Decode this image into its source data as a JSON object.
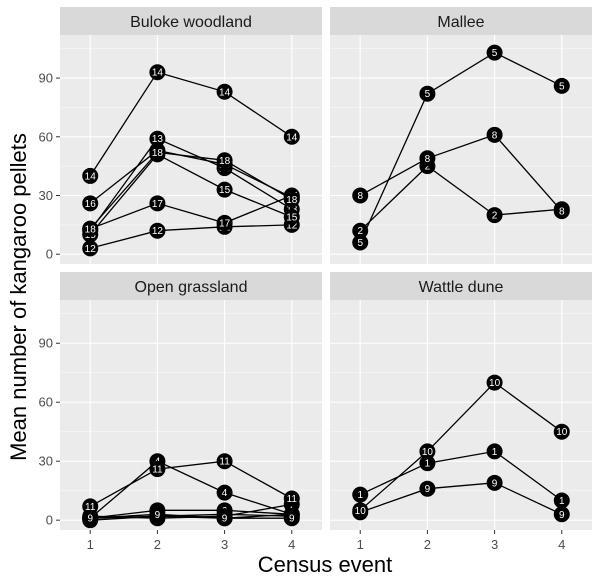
{
  "chart_data": {
    "type": "line",
    "xlabel": "Census event",
    "ylabel": "Mean number of kangaroo pellets",
    "xlim": [
      0.55,
      4.45
    ],
    "ylim": [
      -5,
      112
    ],
    "x_ticks": [
      1,
      2,
      3,
      4
    ],
    "y_ticks": [
      0,
      30,
      60,
      90
    ],
    "grid": true,
    "colors": {
      "panel_bg": "#ebebeb",
      "strip_bg": "#d9d9d9",
      "grid_major": "#ffffff",
      "line": "#000000",
      "point": "#000000",
      "point_label": "#ffffff"
    },
    "panels": [
      {
        "name": "Buloke woodland",
        "series": [
          {
            "name": "12",
            "values": [
              3,
              12,
              14,
              15
            ]
          },
          {
            "name": "13",
            "values": [
              12,
              59,
              44,
              23
            ]
          },
          {
            "name": "14",
            "values": [
              40,
              93,
              83,
              60
            ]
          },
          {
            "name": "15",
            "values": [
              10,
              51,
              33,
              19
            ]
          },
          {
            "name": "16",
            "values": [
              26,
              53,
              46,
              29
            ]
          },
          {
            "name": "17",
            "values": [
              13,
              26,
              16,
              30
            ]
          },
          {
            "name": "18",
            "values": [
              13,
              52,
              48,
              28
            ]
          }
        ]
      },
      {
        "name": "Mallee",
        "series": [
          {
            "name": "2",
            "values": [
              12,
              45,
              20,
              23
            ]
          },
          {
            "name": "5",
            "values": [
              6,
              82,
              103,
              86
            ]
          },
          {
            "name": "8",
            "values": [
              30,
              49,
              61,
              22
            ]
          }
        ]
      },
      {
        "name": "Open grassland",
        "series": [
          {
            "name": "1",
            "values": [
              0,
              2,
              1,
              3
            ]
          },
          {
            "name": "3",
            "values": [
              1,
              2,
              3,
              2
            ]
          },
          {
            "name": "4",
            "values": [
              1,
              30,
              14,
              3
            ]
          },
          {
            "name": "6",
            "values": [
              1,
              5,
              5,
              3
            ]
          },
          {
            "name": "7",
            "values": [
              2,
              1,
              2,
              8
            ]
          },
          {
            "name": "9",
            "values": [
              1,
              3,
              1,
              1
            ]
          },
          {
            "name": "11",
            "values": [
              7,
              26,
              30,
              11
            ]
          }
        ]
      },
      {
        "name": "Wattle dune",
        "series": [
          {
            "name": "1",
            "values": [
              13,
              29,
              35,
              10
            ]
          },
          {
            "name": "9",
            "values": [
              4,
              16,
              19,
              3
            ]
          },
          {
            "name": "10",
            "values": [
              5,
              35,
              70,
              45
            ]
          }
        ]
      }
    ]
  }
}
